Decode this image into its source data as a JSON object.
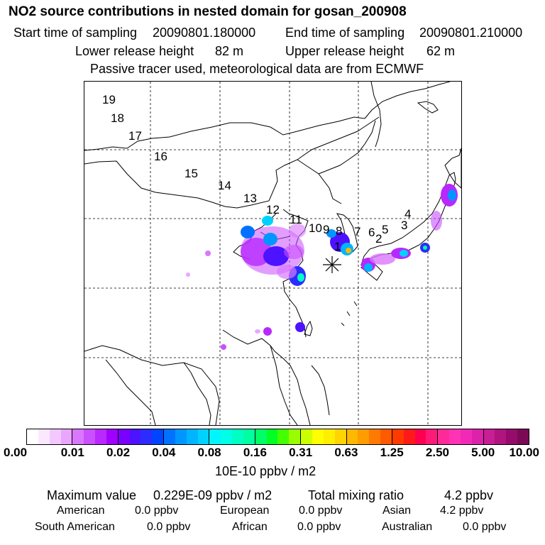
{
  "header": {
    "title": "NO2 source contributions in nested domain for gosan_200908",
    "start_label": "Start time of sampling",
    "start_value": "20090801.180000",
    "end_label": "End time of sampling",
    "end_value": "20090801.210000",
    "lower_label": "Lower release height",
    "lower_value": "82 m",
    "upper_label": "Upper release height",
    "upper_value": "62 m",
    "note": "Passive tracer used, meteorological data are from ECMWF"
  },
  "map": {
    "receptor_icon": "asterisk-receptor-icon",
    "trajectory_labels": [
      "1",
      "2",
      "3",
      "4",
      "5",
      "6",
      "7",
      "8",
      "9",
      "10",
      "11",
      "12",
      "13",
      "14",
      "15",
      "16",
      "17",
      "18",
      "19"
    ]
  },
  "colorbar": {
    "ticks": [
      "0.00",
      "0.01",
      "0.02",
      "0.04",
      "0.08",
      "0.16",
      "0.31",
      "0.63",
      "1.25",
      "2.50",
      "5.00",
      "10.00"
    ],
    "unit": "10E-10 ppbv / m2",
    "segments": [
      [
        "#ffffff",
        "#fbe8ff",
        "#f3c8ff",
        "#eaa6ff"
      ],
      [
        "#d977ff",
        "#ca4fff",
        "#b828ff",
        "#a000ff"
      ],
      [
        "#7a00ff",
        "#4d12ff",
        "#2c2cff",
        "#0044ff"
      ],
      [
        "#0072ff",
        "#0096ff",
        "#00b4ff",
        "#00d2ff"
      ],
      [
        "#00f6ff",
        "#00ffe6",
        "#00ffc3",
        "#00ffa0"
      ],
      [
        "#00ff66",
        "#00ff22",
        "#44ff00",
        "#99ff00"
      ],
      [
        "#ccff00",
        "#ffff00",
        "#ffee00",
        "#ffd400"
      ],
      [
        "#ffb800",
        "#ff9c00",
        "#ff7a00",
        "#ff5a00"
      ],
      [
        "#ff3a00",
        "#ff1a1a",
        "#ff0050",
        "#ff1a7a"
      ],
      [
        "#ff2a9a",
        "#ff33b4",
        "#f02ab4",
        "#dc22aa"
      ],
      [
        "#c81e96",
        "#b0147e",
        "#960c6a",
        "#7a0a56"
      ]
    ]
  },
  "stats": {
    "max_label": "Maximum value",
    "max_value": "0.229E-09 ppbv / m2",
    "total_label": "Total mixing ratio",
    "total_value": "4.2 ppbv",
    "regions": [
      {
        "name": "American",
        "value": "0.0 ppbv"
      },
      {
        "name": "European",
        "value": "0.0 ppbv"
      },
      {
        "name": "Asian",
        "value": "4.2 ppbv"
      },
      {
        "name": "South American",
        "value": "0.0 ppbv"
      },
      {
        "name": "African",
        "value": "0.0 ppbv"
      },
      {
        "name": "Australian",
        "value": "0.0 ppbv"
      }
    ]
  }
}
